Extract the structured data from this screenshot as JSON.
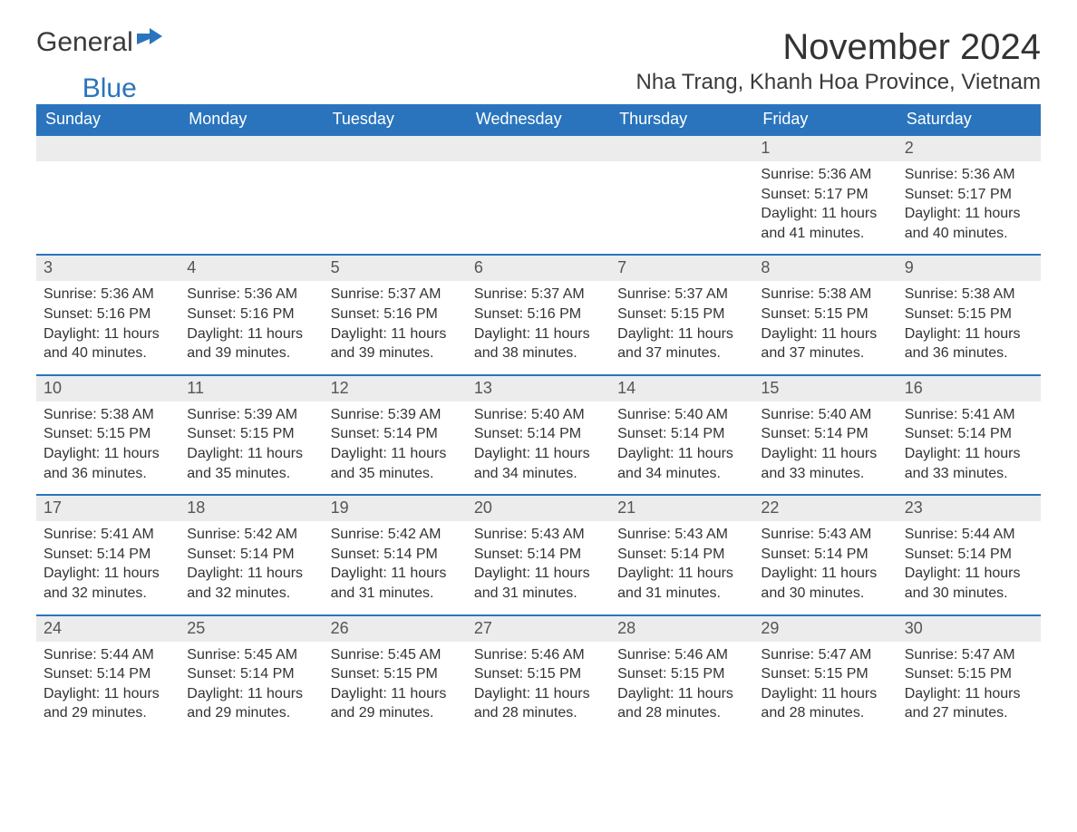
{
  "logo": {
    "text1": "General",
    "text2": "Blue"
  },
  "title": "November 2024",
  "location": "Nha Trang, Khanh Hoa Province, Vietnam",
  "colors": {
    "header_bg": "#2a74bd",
    "header_text": "#ffffff",
    "daynum_bg": "#ececec",
    "daynum_text": "#555555",
    "body_text": "#333333",
    "rule": "#2a74bd",
    "page_bg": "#ffffff"
  },
  "typography": {
    "title_fontsize": 40,
    "location_fontsize": 24,
    "dayheader_fontsize": 18,
    "daynum_fontsize": 18,
    "body_fontsize": 16
  },
  "layout": {
    "columns": 7,
    "rows": 5
  },
  "day_headers": [
    "Sunday",
    "Monday",
    "Tuesday",
    "Wednesday",
    "Thursday",
    "Friday",
    "Saturday"
  ],
  "weeks": [
    [
      {
        "empty": true
      },
      {
        "empty": true
      },
      {
        "empty": true
      },
      {
        "empty": true
      },
      {
        "empty": true
      },
      {
        "day": "1",
        "sunrise": "Sunrise: 5:36 AM",
        "sunset": "Sunset: 5:17 PM",
        "daylight1": "Daylight: 11 hours",
        "daylight2": "and 41 minutes."
      },
      {
        "day": "2",
        "sunrise": "Sunrise: 5:36 AM",
        "sunset": "Sunset: 5:17 PM",
        "daylight1": "Daylight: 11 hours",
        "daylight2": "and 40 minutes."
      }
    ],
    [
      {
        "day": "3",
        "sunrise": "Sunrise: 5:36 AM",
        "sunset": "Sunset: 5:16 PM",
        "daylight1": "Daylight: 11 hours",
        "daylight2": "and 40 minutes."
      },
      {
        "day": "4",
        "sunrise": "Sunrise: 5:36 AM",
        "sunset": "Sunset: 5:16 PM",
        "daylight1": "Daylight: 11 hours",
        "daylight2": "and 39 minutes."
      },
      {
        "day": "5",
        "sunrise": "Sunrise: 5:37 AM",
        "sunset": "Sunset: 5:16 PM",
        "daylight1": "Daylight: 11 hours",
        "daylight2": "and 39 minutes."
      },
      {
        "day": "6",
        "sunrise": "Sunrise: 5:37 AM",
        "sunset": "Sunset: 5:16 PM",
        "daylight1": "Daylight: 11 hours",
        "daylight2": "and 38 minutes."
      },
      {
        "day": "7",
        "sunrise": "Sunrise: 5:37 AM",
        "sunset": "Sunset: 5:15 PM",
        "daylight1": "Daylight: 11 hours",
        "daylight2": "and 37 minutes."
      },
      {
        "day": "8",
        "sunrise": "Sunrise: 5:38 AM",
        "sunset": "Sunset: 5:15 PM",
        "daylight1": "Daylight: 11 hours",
        "daylight2": "and 37 minutes."
      },
      {
        "day": "9",
        "sunrise": "Sunrise: 5:38 AM",
        "sunset": "Sunset: 5:15 PM",
        "daylight1": "Daylight: 11 hours",
        "daylight2": "and 36 minutes."
      }
    ],
    [
      {
        "day": "10",
        "sunrise": "Sunrise: 5:38 AM",
        "sunset": "Sunset: 5:15 PM",
        "daylight1": "Daylight: 11 hours",
        "daylight2": "and 36 minutes."
      },
      {
        "day": "11",
        "sunrise": "Sunrise: 5:39 AM",
        "sunset": "Sunset: 5:15 PM",
        "daylight1": "Daylight: 11 hours",
        "daylight2": "and 35 minutes."
      },
      {
        "day": "12",
        "sunrise": "Sunrise: 5:39 AM",
        "sunset": "Sunset: 5:14 PM",
        "daylight1": "Daylight: 11 hours",
        "daylight2": "and 35 minutes."
      },
      {
        "day": "13",
        "sunrise": "Sunrise: 5:40 AM",
        "sunset": "Sunset: 5:14 PM",
        "daylight1": "Daylight: 11 hours",
        "daylight2": "and 34 minutes."
      },
      {
        "day": "14",
        "sunrise": "Sunrise: 5:40 AM",
        "sunset": "Sunset: 5:14 PM",
        "daylight1": "Daylight: 11 hours",
        "daylight2": "and 34 minutes."
      },
      {
        "day": "15",
        "sunrise": "Sunrise: 5:40 AM",
        "sunset": "Sunset: 5:14 PM",
        "daylight1": "Daylight: 11 hours",
        "daylight2": "and 33 minutes."
      },
      {
        "day": "16",
        "sunrise": "Sunrise: 5:41 AM",
        "sunset": "Sunset: 5:14 PM",
        "daylight1": "Daylight: 11 hours",
        "daylight2": "and 33 minutes."
      }
    ],
    [
      {
        "day": "17",
        "sunrise": "Sunrise: 5:41 AM",
        "sunset": "Sunset: 5:14 PM",
        "daylight1": "Daylight: 11 hours",
        "daylight2": "and 32 minutes."
      },
      {
        "day": "18",
        "sunrise": "Sunrise: 5:42 AM",
        "sunset": "Sunset: 5:14 PM",
        "daylight1": "Daylight: 11 hours",
        "daylight2": "and 32 minutes."
      },
      {
        "day": "19",
        "sunrise": "Sunrise: 5:42 AM",
        "sunset": "Sunset: 5:14 PM",
        "daylight1": "Daylight: 11 hours",
        "daylight2": "and 31 minutes."
      },
      {
        "day": "20",
        "sunrise": "Sunrise: 5:43 AM",
        "sunset": "Sunset: 5:14 PM",
        "daylight1": "Daylight: 11 hours",
        "daylight2": "and 31 minutes."
      },
      {
        "day": "21",
        "sunrise": "Sunrise: 5:43 AM",
        "sunset": "Sunset: 5:14 PM",
        "daylight1": "Daylight: 11 hours",
        "daylight2": "and 31 minutes."
      },
      {
        "day": "22",
        "sunrise": "Sunrise: 5:43 AM",
        "sunset": "Sunset: 5:14 PM",
        "daylight1": "Daylight: 11 hours",
        "daylight2": "and 30 minutes."
      },
      {
        "day": "23",
        "sunrise": "Sunrise: 5:44 AM",
        "sunset": "Sunset: 5:14 PM",
        "daylight1": "Daylight: 11 hours",
        "daylight2": "and 30 minutes."
      }
    ],
    [
      {
        "day": "24",
        "sunrise": "Sunrise: 5:44 AM",
        "sunset": "Sunset: 5:14 PM",
        "daylight1": "Daylight: 11 hours",
        "daylight2": "and 29 minutes."
      },
      {
        "day": "25",
        "sunrise": "Sunrise: 5:45 AM",
        "sunset": "Sunset: 5:14 PM",
        "daylight1": "Daylight: 11 hours",
        "daylight2": "and 29 minutes."
      },
      {
        "day": "26",
        "sunrise": "Sunrise: 5:45 AM",
        "sunset": "Sunset: 5:15 PM",
        "daylight1": "Daylight: 11 hours",
        "daylight2": "and 29 minutes."
      },
      {
        "day": "27",
        "sunrise": "Sunrise: 5:46 AM",
        "sunset": "Sunset: 5:15 PM",
        "daylight1": "Daylight: 11 hours",
        "daylight2": "and 28 minutes."
      },
      {
        "day": "28",
        "sunrise": "Sunrise: 5:46 AM",
        "sunset": "Sunset: 5:15 PM",
        "daylight1": "Daylight: 11 hours",
        "daylight2": "and 28 minutes."
      },
      {
        "day": "29",
        "sunrise": "Sunrise: 5:47 AM",
        "sunset": "Sunset: 5:15 PM",
        "daylight1": "Daylight: 11 hours",
        "daylight2": "and 28 minutes."
      },
      {
        "day": "30",
        "sunrise": "Sunrise: 5:47 AM",
        "sunset": "Sunset: 5:15 PM",
        "daylight1": "Daylight: 11 hours",
        "daylight2": "and 27 minutes."
      }
    ]
  ]
}
